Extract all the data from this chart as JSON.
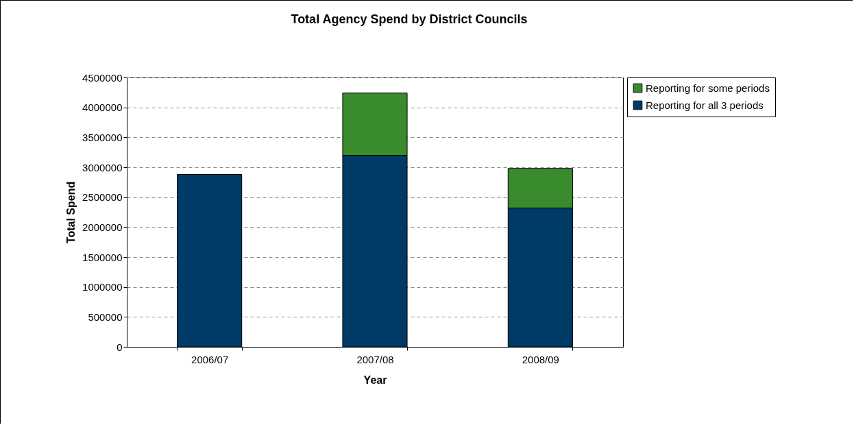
{
  "chart_data": {
    "type": "bar",
    "title": "Total Agency Spend by District Councils",
    "xlabel": "Year",
    "ylabel": "Total Spend",
    "categories": [
      "2006/07",
      "2007/08",
      "2008/09"
    ],
    "series": [
      {
        "name": "Reporting for all 3 periods",
        "color": "#003a66",
        "values": [
          2880000,
          3200000,
          2320000
        ]
      },
      {
        "name": "Reporting for some periods",
        "color": "#3a8a2e",
        "values": [
          null,
          1040000,
          660000
        ]
      }
    ],
    "stacked": true,
    "ylim": [
      0,
      4500000
    ],
    "yticks": [
      0,
      500000,
      1000000,
      1500000,
      2000000,
      2500000,
      3000000,
      3500000,
      4000000,
      4500000
    ],
    "grid": "y",
    "legend": "right"
  }
}
